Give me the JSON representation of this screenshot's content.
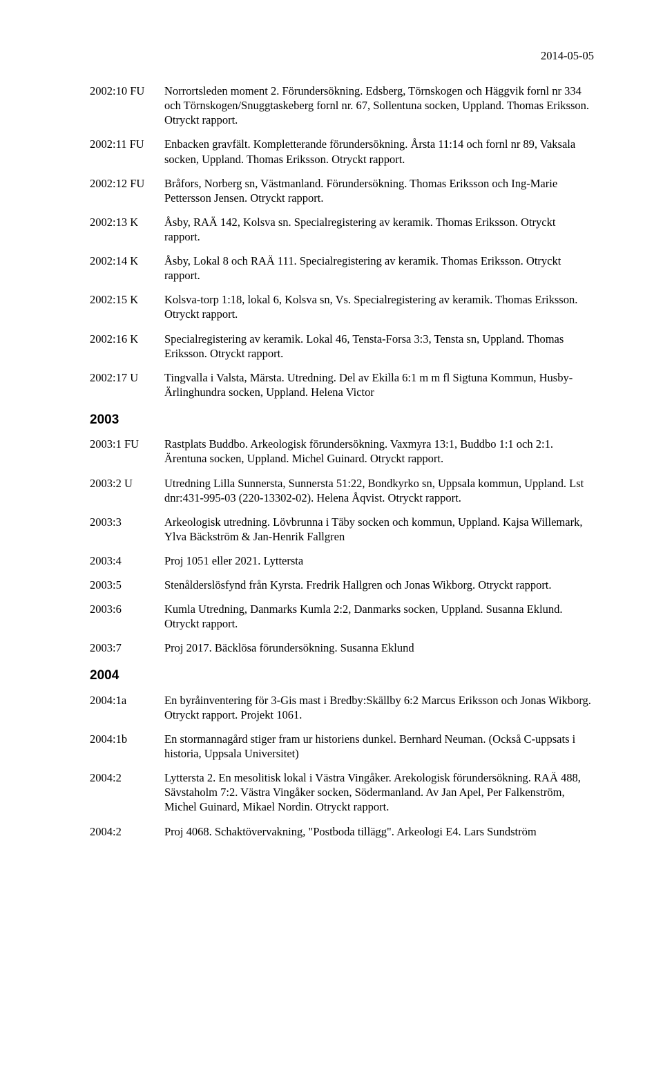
{
  "date": "2014-05-05",
  "entries": [
    {
      "code": "2002:10 FU",
      "text": "Norrortsleden moment 2. Förundersökning. Edsberg, Törnskogen och Häggvik fornl nr 334 och Törnskogen/Snuggtaskeberg fornl nr. 67, Sollentuna socken, Uppland. Thomas Eriksson. Otryckt rapport."
    },
    {
      "code": "2002:11 FU",
      "text": "Enbacken gravfält. Kompletterande förundersökning. Årsta 11:14 och fornl nr 89, Vaksala socken, Uppland. Thomas Eriksson. Otryckt rapport."
    },
    {
      "code": "2002:12 FU",
      "text": "Bråfors, Norberg sn, Västmanland. Förundersökning. Thomas Eriksson och Ing-Marie Pettersson Jensen. Otryckt rapport."
    },
    {
      "code": "2002:13 K",
      "text": "Åsby, RAÄ 142, Kolsva sn. Specialregistering av keramik. Thomas Eriksson. Otryckt rapport."
    },
    {
      "code": "2002:14 K",
      "text": "Åsby, Lokal 8 och RAÄ 111. Specialregistering av keramik. Thomas Eriksson. Otryckt rapport."
    },
    {
      "code": "2002:15 K",
      "text": "Kolsva-torp 1:18, lokal 6, Kolsva sn, Vs. Specialregistering av keramik. Thomas Eriksson. Otryckt rapport."
    },
    {
      "code": "2002:16 K",
      "text": "Specialregistering av keramik. Lokal 46, Tensta-Forsa 3:3, Tensta sn, Uppland. Thomas Eriksson. Otryckt rapport."
    },
    {
      "code": "2002:17 U",
      "text": "Tingvalla i Valsta, Märsta. Utredning. Del av Ekilla 6:1 m m fl Sigtuna Kommun, Husby- Ärlinghundra socken, Uppland. Helena Victor"
    }
  ],
  "year2003": "2003",
  "entries2003": [
    {
      "code": "2003:1 FU",
      "text": "Rastplats Buddbo. Arkeologisk förundersökning. Vaxmyra 13:1, Buddbo 1:1 och 2:1. Ärentuna socken, Uppland. Michel Guinard. Otryckt rapport."
    },
    {
      "code": "2003:2 U",
      "text": "Utredning Lilla Sunnersta, Sunnersta 51:22, Bondkyrko sn, Uppsala kommun, Uppland. Lst dnr:431-995-03 (220-13302-02). Helena Åqvist. Otryckt rapport."
    },
    {
      "code": "2003:3",
      "text": "Arkeologisk utredning. Lövbrunna i Täby socken och kommun, Uppland. Kajsa Willemark, Ylva Bäckström & Jan-Henrik Fallgren"
    },
    {
      "code": "2003:4",
      "text": "Proj 1051 eller 2021. Lyttersta"
    },
    {
      "code": "2003:5",
      "text": "Stenålderslösfynd från Kyrsta. Fredrik Hallgren och Jonas Wikborg. Otryckt rapport."
    },
    {
      "code": "2003:6",
      "text": "Kumla Utredning, Danmarks Kumla 2:2, Danmarks socken, Uppland. Susanna Eklund. Otryckt rapport."
    },
    {
      "code": "2003:7",
      "text": "Proj 2017. Bäcklösa förundersökning. Susanna Eklund"
    }
  ],
  "year2004": "2004",
  "entries2004": [
    {
      "code": "2004:1a",
      "text": "En byråinventering för 3-Gis mast i Bredby:Skällby 6:2 Marcus Eriksson och Jonas Wikborg. Otryckt rapport. Projekt 1061."
    },
    {
      "code": "2004:1b",
      "text": "En stormannagård stiger fram ur historiens dunkel. Bernhard Neuman. (Också C-uppsats i historia, Uppsala Universitet)"
    },
    {
      "code": "2004:2",
      "text": "Lyttersta 2. En mesolitisk lokal i Västra Vingåker. Arekologisk förundersökning. RAÄ 488, Sävstaholm 7:2. Västra Vingåker socken, Södermanland. Av Jan Apel, Per Falkenström, Michel Guinard, Mikael Nordin. Otryckt rapport."
    },
    {
      "code": "2004:2",
      "text": "Proj 4068. Schaktövervakning, \"Postboda tillägg\". Arkeologi E4. Lars Sundström"
    }
  ]
}
